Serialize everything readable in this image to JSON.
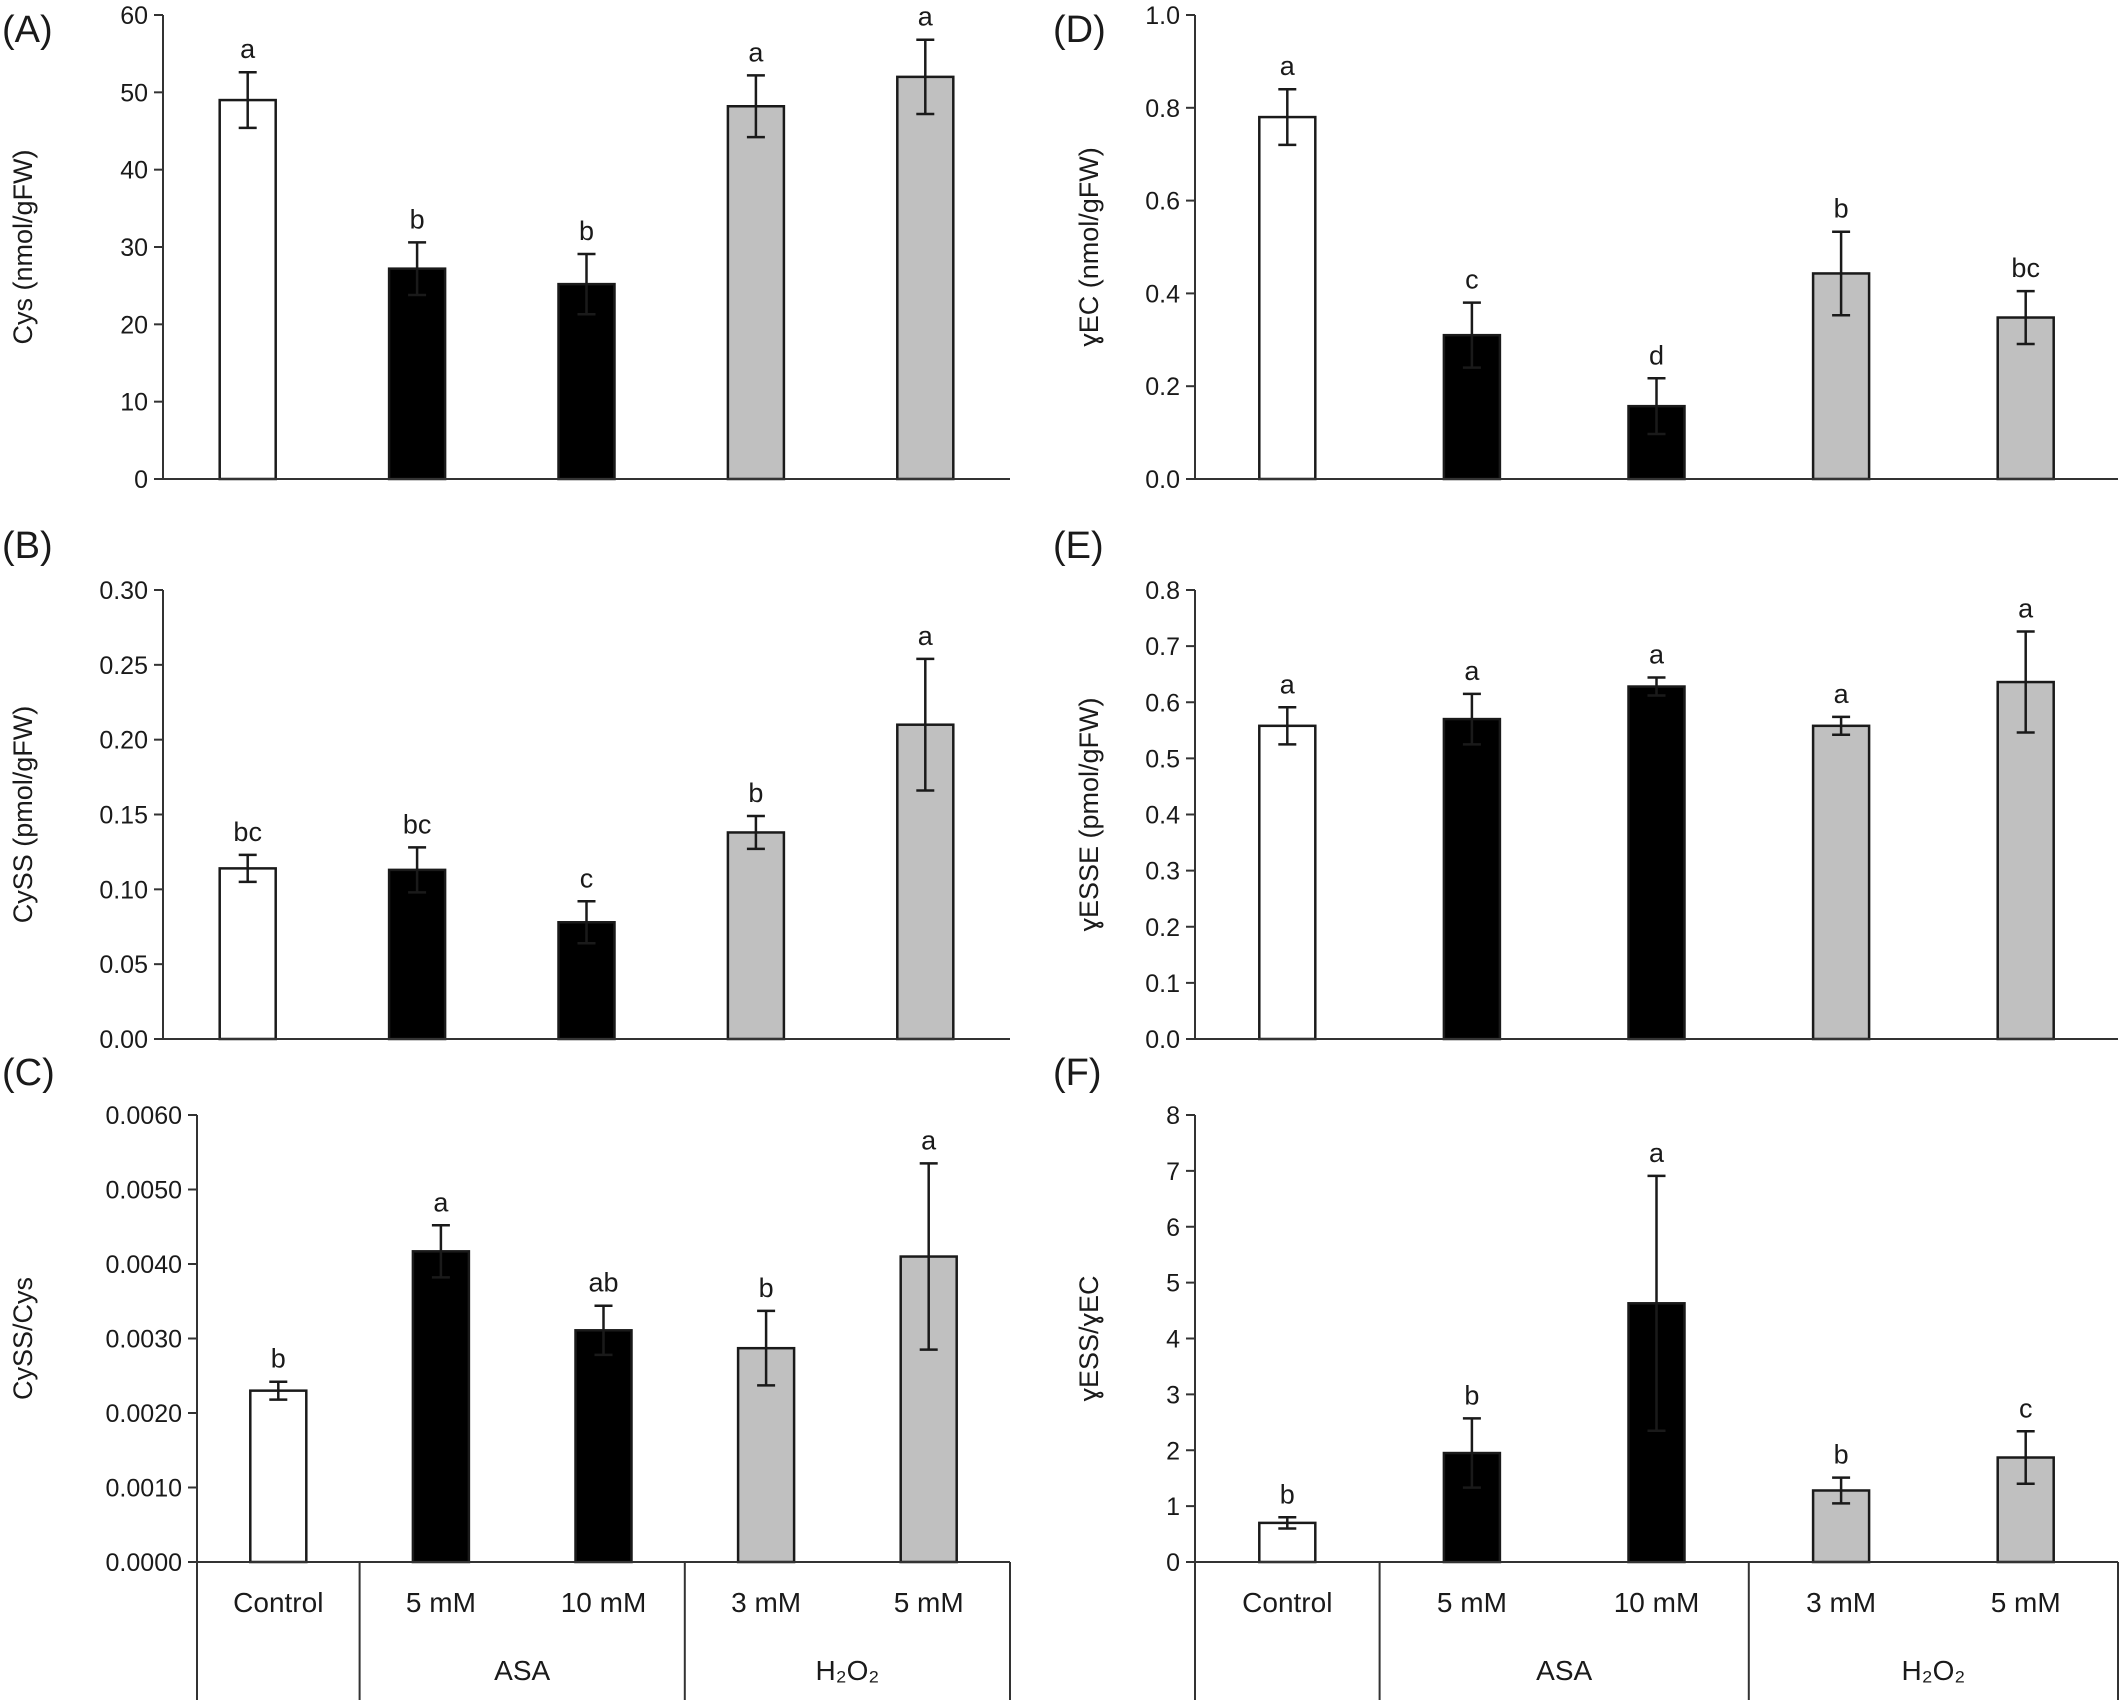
{
  "figure": {
    "categories": [
      "Control",
      "5 mM",
      "10 mM",
      "3 mM",
      "5 mM"
    ],
    "groups": [
      {
        "label": "ASA",
        "members": [
          1,
          2
        ]
      },
      {
        "label": "H₂O₂",
        "members": [
          3,
          4
        ]
      }
    ],
    "bar_colors": [
      "#ffffff",
      "#000000",
      "#000000",
      "#c0c0c0",
      "#c0c0c0"
    ],
    "bar_edge_color": "#1a1a1a"
  },
  "chart_data": [
    {
      "panel": "(A)",
      "type": "bar",
      "ylabel": "Cys (nmol/gFW)",
      "ylim": [
        0,
        60
      ],
      "yticks": [
        "0",
        "10",
        "20",
        "30",
        "40",
        "50",
        "60"
      ],
      "values": [
        49.0,
        27.2,
        25.2,
        48.2,
        52.0
      ],
      "errors": [
        3.6,
        3.4,
        3.9,
        4.0,
        4.8
      ],
      "significance": [
        "a",
        "b",
        "b",
        "a",
        "a"
      ]
    },
    {
      "panel": "(B)",
      "type": "bar",
      "ylabel": "CySS (pmol/gFW)",
      "ylim": [
        0,
        0.3
      ],
      "yticks": [
        "0.00",
        "0.05",
        "0.10",
        "0.15",
        "0.20",
        "0.25",
        "0.30"
      ],
      "values": [
        0.114,
        0.113,
        0.078,
        0.138,
        0.21
      ],
      "errors": [
        0.009,
        0.015,
        0.014,
        0.011,
        0.044
      ],
      "significance": [
        "bc",
        "bc",
        "c",
        "b",
        "a"
      ]
    },
    {
      "panel": "(C)",
      "type": "bar",
      "ylabel": "CySS/Cys",
      "ylim": [
        0,
        0.006
      ],
      "yticks": [
        "0.0000",
        "0.0010",
        "0.0020",
        "0.0030",
        "0.0040",
        "0.0050",
        "0.0060"
      ],
      "values": [
        0.0023,
        0.00417,
        0.00311,
        0.00287,
        0.0041
      ],
      "errors": [
        0.00012,
        0.00035,
        0.00033,
        0.0005,
        0.00125
      ],
      "significance": [
        "b",
        "a",
        "ab",
        "b",
        "a"
      ]
    },
    {
      "panel": "(D)",
      "type": "bar",
      "ylabel": "ɣEC (nmol/gFW)",
      "ylim": [
        0,
        1.0
      ],
      "yticks": [
        "0.0",
        "0.2",
        "0.4",
        "0.6",
        "0.8",
        "1.0"
      ],
      "values": [
        0.78,
        0.31,
        0.157,
        0.443,
        0.348
      ],
      "errors": [
        0.06,
        0.07,
        0.06,
        0.09,
        0.057
      ],
      "significance": [
        "a",
        "c",
        "d",
        "b",
        "bc"
      ]
    },
    {
      "panel": "(E)",
      "type": "bar",
      "ylabel": "ɣESSE (pmol/gFW)",
      "ylim": [
        0,
        0.8
      ],
      "yticks": [
        "0.0",
        "0.1",
        "0.2",
        "0.3",
        "0.4",
        "0.5",
        "0.6",
        "0.7",
        "0.8"
      ],
      "values": [
        0.558,
        0.57,
        0.628,
        0.558,
        0.636
      ],
      "errors": [
        0.033,
        0.045,
        0.016,
        0.016,
        0.09
      ],
      "significance": [
        "a",
        "a",
        "a",
        "a",
        "a"
      ]
    },
    {
      "panel": "(F)",
      "type": "bar",
      "ylabel": "ɣESS/ɣEC",
      "ylim": [
        0,
        8
      ],
      "yticks": [
        "0",
        "1",
        "2",
        "3",
        "4",
        "5",
        "6",
        "7",
        "8"
      ],
      "values": [
        0.7,
        1.95,
        4.63,
        1.28,
        1.87
      ],
      "errors": [
        0.1,
        0.62,
        2.28,
        0.23,
        0.47
      ],
      "significance": [
        "b",
        "b",
        "a",
        "b",
        "c"
      ]
    }
  ]
}
